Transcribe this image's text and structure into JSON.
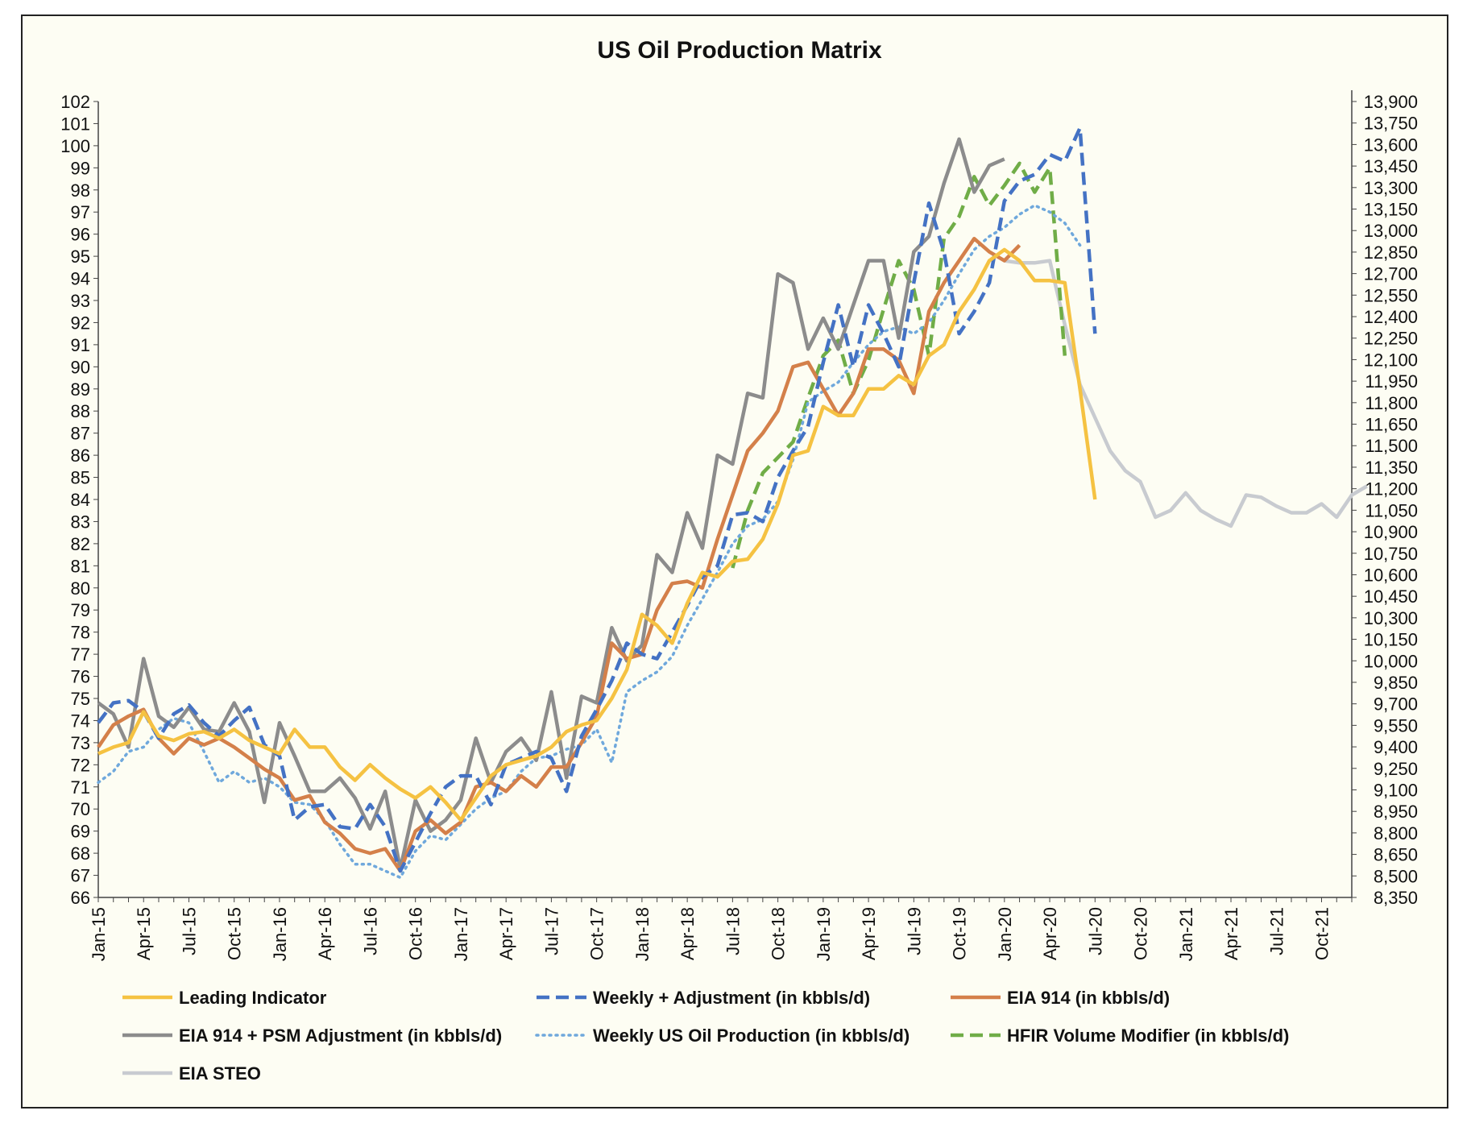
{
  "chart_data": {
    "type": "line",
    "title": "US Oil Production Matrix",
    "xlabel": "",
    "ylabel": "",
    "left_axis": {
      "ylim": [
        66,
        102
      ],
      "ticks": [
        66,
        67,
        68,
        69,
        70,
        71,
        72,
        73,
        74,
        75,
        76,
        77,
        78,
        79,
        80,
        81,
        82,
        83,
        84,
        85,
        86,
        87,
        88,
        89,
        90,
        91,
        92,
        93,
        94,
        95,
        96,
        97,
        98,
        99,
        100,
        101,
        102
      ]
    },
    "right_axis": {
      "ylim": [
        8350,
        13900
      ],
      "tick_labels": [
        "8,350",
        "8,500",
        "8,650",
        "8,800",
        "8,950",
        "9,100",
        "9,250",
        "9,400",
        "9,550",
        "9,700",
        "9,850",
        "10,000",
        "10,150",
        "10,300",
        "10,450",
        "10,600",
        "10,750",
        "10,900",
        "11,050",
        "11,200",
        "11,350",
        "11,500",
        "11,650",
        "11,800",
        "11,950",
        "12,100",
        "12,250",
        "12,400",
        "12,550",
        "12,700",
        "12,850",
        "13,000",
        "13,150",
        "13,300",
        "13,450",
        "13,600",
        "13,750",
        "13,900"
      ]
    },
    "x_start": "Jan-15",
    "x_end": "Dec-21",
    "x_tick_labels": [
      "Jan-15",
      "Apr-15",
      "Jul-15",
      "Oct-15",
      "Jan-16",
      "Apr-16",
      "Jul-16",
      "Oct-16",
      "Jan-17",
      "Apr-17",
      "Jul-17",
      "Oct-17",
      "Jan-18",
      "Apr-18",
      "Jul-18",
      "Oct-18",
      "Jan-19",
      "Apr-19",
      "Jul-19",
      "Oct-19",
      "Jan-20",
      "Apr-20",
      "Jul-20",
      "Oct-20",
      "Jan-21",
      "Apr-21",
      "Jul-21",
      "Oct-21"
    ],
    "grid": false,
    "legend_position": "bottom",
    "series": [
      {
        "name": "Leading Indicator",
        "axis": "left",
        "color": "#f5c242",
        "dash": "solid",
        "start": "Jan-15",
        "values": [
          72.5,
          72.8,
          73.0,
          74.4,
          73.3,
          73.1,
          73.4,
          73.5,
          73.2,
          73.6,
          73.1,
          72.8,
          72.5,
          73.6,
          72.8,
          72.8,
          71.9,
          71.3,
          72.0,
          71.4,
          70.9,
          70.5,
          71.0,
          70.3,
          69.5,
          70.5,
          71.5,
          72.0,
          72.2,
          72.4,
          72.8,
          73.5,
          73.8,
          74.0,
          75.0,
          76.3,
          78.8,
          78.3,
          77.5,
          79.3,
          80.7,
          80.5,
          81.2,
          81.3,
          82.2,
          83.8,
          86.0,
          86.2,
          88.2,
          87.8,
          87.8,
          89.0,
          89.0,
          89.6,
          89.2,
          90.5,
          91.0,
          92.5,
          93.5,
          94.8,
          95.3,
          94.8,
          93.9,
          93.9,
          93.8,
          89.0,
          84.0
        ]
      },
      {
        "name": "Weekly + Adjustment (in kbbls/d)",
        "axis": "left",
        "color": "#4472c4",
        "dash": "long",
        "start": "Jan-15",
        "values": [
          73.9,
          74.8,
          74.9,
          74.4,
          73.2,
          74.3,
          74.7,
          73.9,
          73.3,
          74.0,
          74.6,
          72.9,
          72.4,
          69.5,
          70.1,
          70.2,
          69.2,
          69.1,
          70.2,
          69.2,
          67.2,
          68.5,
          69.8,
          71.0,
          71.5,
          71.5,
          70.2,
          72.0,
          72.3,
          72.6,
          72.3,
          70.8,
          73.3,
          74.5,
          75.8,
          77.5,
          77.0,
          76.8,
          78.0,
          79.2,
          80.5,
          81.0,
          83.3,
          83.4,
          83.0,
          85.0,
          86.2,
          87.3,
          90.2,
          92.8,
          90.0,
          92.8,
          91.5,
          90.0,
          93.8,
          97.4,
          95.2,
          91.5,
          92.5,
          93.8,
          97.5,
          98.4,
          98.7,
          99.6,
          99.3,
          100.8,
          91.5
        ]
      },
      {
        "name": "EIA 914 (in kbbls/d)",
        "axis": "left",
        "color": "#d4804a",
        "dash": "solid",
        "start": "Jan-15",
        "values": [
          72.8,
          73.8,
          74.2,
          74.5,
          73.2,
          72.5,
          73.2,
          72.9,
          73.2,
          72.8,
          72.3,
          71.8,
          71.4,
          70.4,
          70.6,
          69.4,
          68.9,
          68.2,
          68.0,
          68.2,
          67.2,
          69.0,
          69.5,
          68.9,
          69.4,
          71.0,
          71.2,
          70.8,
          71.5,
          71.0,
          71.9,
          71.9,
          73.0,
          74.2,
          77.5,
          76.8,
          77.0,
          79.0,
          80.2,
          80.3,
          80.0,
          82.2,
          84.2,
          86.2,
          87.0,
          88.0,
          90.0,
          90.2,
          89.0,
          87.8,
          88.8,
          90.8,
          90.8,
          90.3,
          88.8,
          92.5,
          93.8,
          94.8,
          95.8,
          95.2,
          94.8,
          95.5
        ]
      },
      {
        "name": "EIA 914 + PSM Adjustment (in kbbls/d)",
        "axis": "left",
        "color": "#8c8c8c",
        "dash": "solid",
        "start": "Jan-15",
        "values": [
          74.8,
          74.3,
          72.8,
          76.8,
          74.2,
          73.7,
          74.6,
          73.6,
          73.5,
          74.8,
          73.5,
          70.3,
          73.9,
          72.4,
          70.8,
          70.8,
          71.4,
          70.5,
          69.1,
          70.8,
          67.3,
          70.4,
          69.0,
          69.5,
          70.4,
          73.2,
          71.2,
          72.6,
          73.2,
          72.2,
          75.3,
          71.4,
          75.1,
          74.8,
          78.2,
          76.7,
          77.4,
          81.5,
          80.7,
          83.4,
          81.8,
          86.0,
          85.6,
          88.8,
          88.6,
          94.2,
          93.8,
          90.8,
          92.2,
          90.8,
          92.8,
          94.8,
          94.8,
          91.3,
          95.2,
          95.9,
          98.3,
          100.3,
          97.9,
          99.1,
          99.4
        ]
      },
      {
        "name": "Weekly US Oil Production (in kbbls/d)",
        "axis": "left",
        "color": "#6fa8dc",
        "dash": "dot",
        "start": "Jan-15",
        "values": [
          71.2,
          71.7,
          72.6,
          72.8,
          73.6,
          74.1,
          73.9,
          72.6,
          71.2,
          71.7,
          71.2,
          71.4,
          71.0,
          70.3,
          70.2,
          69.5,
          68.4,
          67.5,
          67.5,
          67.2,
          66.9,
          68.1,
          68.8,
          68.6,
          69.3,
          70.0,
          70.5,
          70.8,
          71.7,
          72.3,
          72.4,
          72.7,
          72.9,
          73.6,
          72.1,
          75.3,
          75.8,
          76.2,
          76.9,
          78.3,
          79.5,
          80.7,
          82.0,
          82.8,
          83.1,
          83.9,
          85.8,
          88.4,
          88.9,
          89.3,
          90.2,
          91.0,
          91.6,
          91.8,
          91.5,
          92.0,
          93.0,
          94.2,
          95.3,
          95.9,
          96.3,
          96.9,
          97.3,
          97.0,
          96.5,
          95.5
        ]
      },
      {
        "name": "HFIR Volume Modifier (in kbbls/d)",
        "axis": "left",
        "color": "#70ad47",
        "dash": "long",
        "start": "Jul-18",
        "values": [
          80.9,
          83.5,
          85.2,
          85.9,
          86.6,
          88.6,
          90.5,
          91.2,
          88.8,
          90.3,
          92.6,
          94.8,
          93.5,
          90.5,
          95.8,
          96.8,
          98.6,
          97.3,
          98.2,
          99.2,
          97.9,
          99.0,
          90.5
        ]
      },
      {
        "name": "EIA STEO",
        "axis": "left",
        "color": "#c8cbd0",
        "dash": "solid",
        "start": "Jan-20",
        "values": [
          94.8,
          94.7,
          94.7,
          94.8,
          91.9,
          89.2,
          87.7,
          86.2,
          85.3,
          84.8,
          83.2,
          83.5,
          84.3,
          83.5,
          83.1,
          82.8,
          84.2,
          84.1,
          83.7,
          83.4,
          83.4,
          83.8,
          83.2,
          84.2,
          84.6
        ]
      }
    ]
  }
}
